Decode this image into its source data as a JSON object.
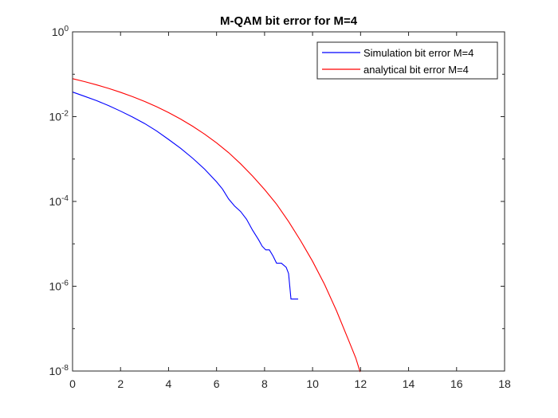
{
  "chart_data": {
    "type": "line",
    "title": "M-QAM bit error for M=4",
    "xlabel": "",
    "ylabel": "",
    "xlim": [
      0,
      18
    ],
    "ylim": [
      1e-08,
      1
    ],
    "yscale": "log",
    "xticks": [
      "0",
      "2",
      "4",
      "6",
      "8",
      "10",
      "12",
      "14",
      "16",
      "18"
    ],
    "yticks": [
      {
        "base": "10",
        "exp": "0"
      },
      {
        "base": "10",
        "exp": "-2"
      },
      {
        "base": "10",
        "exp": "-4"
      },
      {
        "base": "10",
        "exp": "-6"
      },
      {
        "base": "10",
        "exp": "-8"
      }
    ],
    "grid": false,
    "legend_position": "top-right",
    "series": [
      {
        "name": "Simulation bit error M=4",
        "color": "#0000ff",
        "x": [
          0,
          0.5,
          1,
          1.5,
          2,
          2.5,
          3,
          3.5,
          4,
          4.5,
          5,
          5.5,
          6,
          6.25,
          6.5,
          6.75,
          7,
          7.25,
          7.5,
          7.75,
          7.9,
          8.05,
          8.2,
          8.35,
          8.5,
          8.7,
          8.9,
          9.0,
          9.05,
          9.1,
          9.2,
          9.4
        ],
        "y": [
          0.0381,
          0.0302,
          0.0239,
          0.0182,
          0.0135,
          0.0098,
          0.0069,
          0.0046,
          0.0029,
          0.0018,
          0.00105,
          0.00058,
          0.00029,
          0.000195,
          0.000115,
          7.8e-05,
          5.8e-05,
          3.8e-05,
          2.1e-05,
          1.25e-05,
          8.8e-06,
          7.2e-06,
          7.2e-06,
          5.2e-06,
          3.5e-06,
          3.5e-06,
          2.8e-06,
          2e-06,
          1e-06,
          5e-07,
          5e-07,
          5e-07
        ]
      },
      {
        "name": "analytical bit error M=4",
        "color": "#ff0000",
        "x": [
          0,
          0.5,
          1,
          1.5,
          2,
          2.5,
          3,
          3.5,
          4,
          4.5,
          5,
          5.5,
          6,
          6.5,
          7,
          7.5,
          8,
          8.5,
          9,
          9.5,
          10,
          10.5,
          11,
          11.5,
          11.8,
          11.98
        ],
        "y": [
          0.0786,
          0.0671,
          0.0563,
          0.0464,
          0.0375,
          0.0296,
          0.0229,
          0.0172,
          0.0125,
          0.00878,
          0.00595,
          0.00387,
          0.00241,
          0.00142,
          0.000773,
          0.000396,
          0.000191,
          8.63e-05,
          3.36e-05,
          1.19e-05,
          3.87e-06,
          1.1e-06,
          2.62e-07,
          5.32e-08,
          2.03e-08,
          9.5e-09
        ]
      }
    ]
  }
}
